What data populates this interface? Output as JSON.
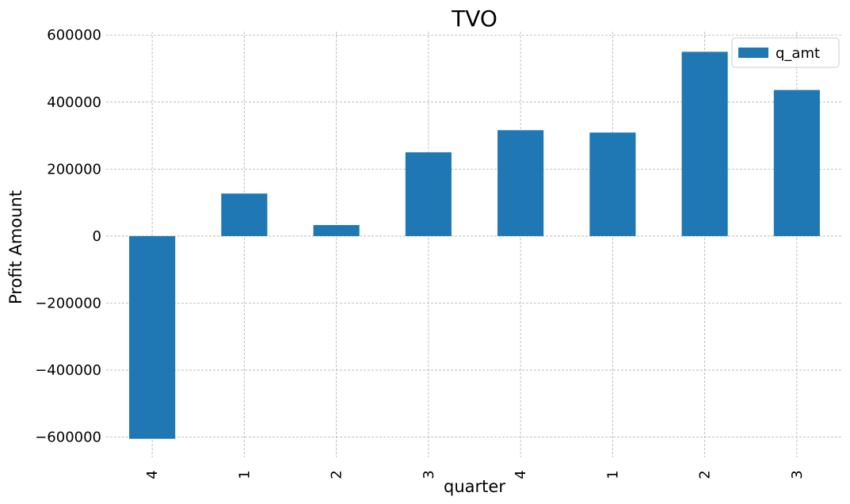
{
  "chart_data": {
    "type": "bar",
    "title": "TVO",
    "xlabel": "quarter",
    "ylabel": "Profit Amount",
    "categories": [
      "4",
      "1",
      "2",
      "3",
      "4",
      "1",
      "2",
      "3"
    ],
    "series": [
      {
        "name": "q_amt",
        "color": "#1f77b4",
        "values": [
          -605000,
          127000,
          33000,
          250000,
          316000,
          309000,
          550000,
          436000
        ]
      }
    ],
    "ylim": [
      -660000,
      610000
    ],
    "yticks": [
      600000,
      400000,
      200000,
      0,
      -200000,
      -400000,
      -600000
    ],
    "ytick_labels": [
      "600000",
      "400000",
      "200000",
      "0",
      "−200000",
      "−400000",
      "−600000"
    ],
    "grid": true,
    "legend_position": "top-right"
  }
}
